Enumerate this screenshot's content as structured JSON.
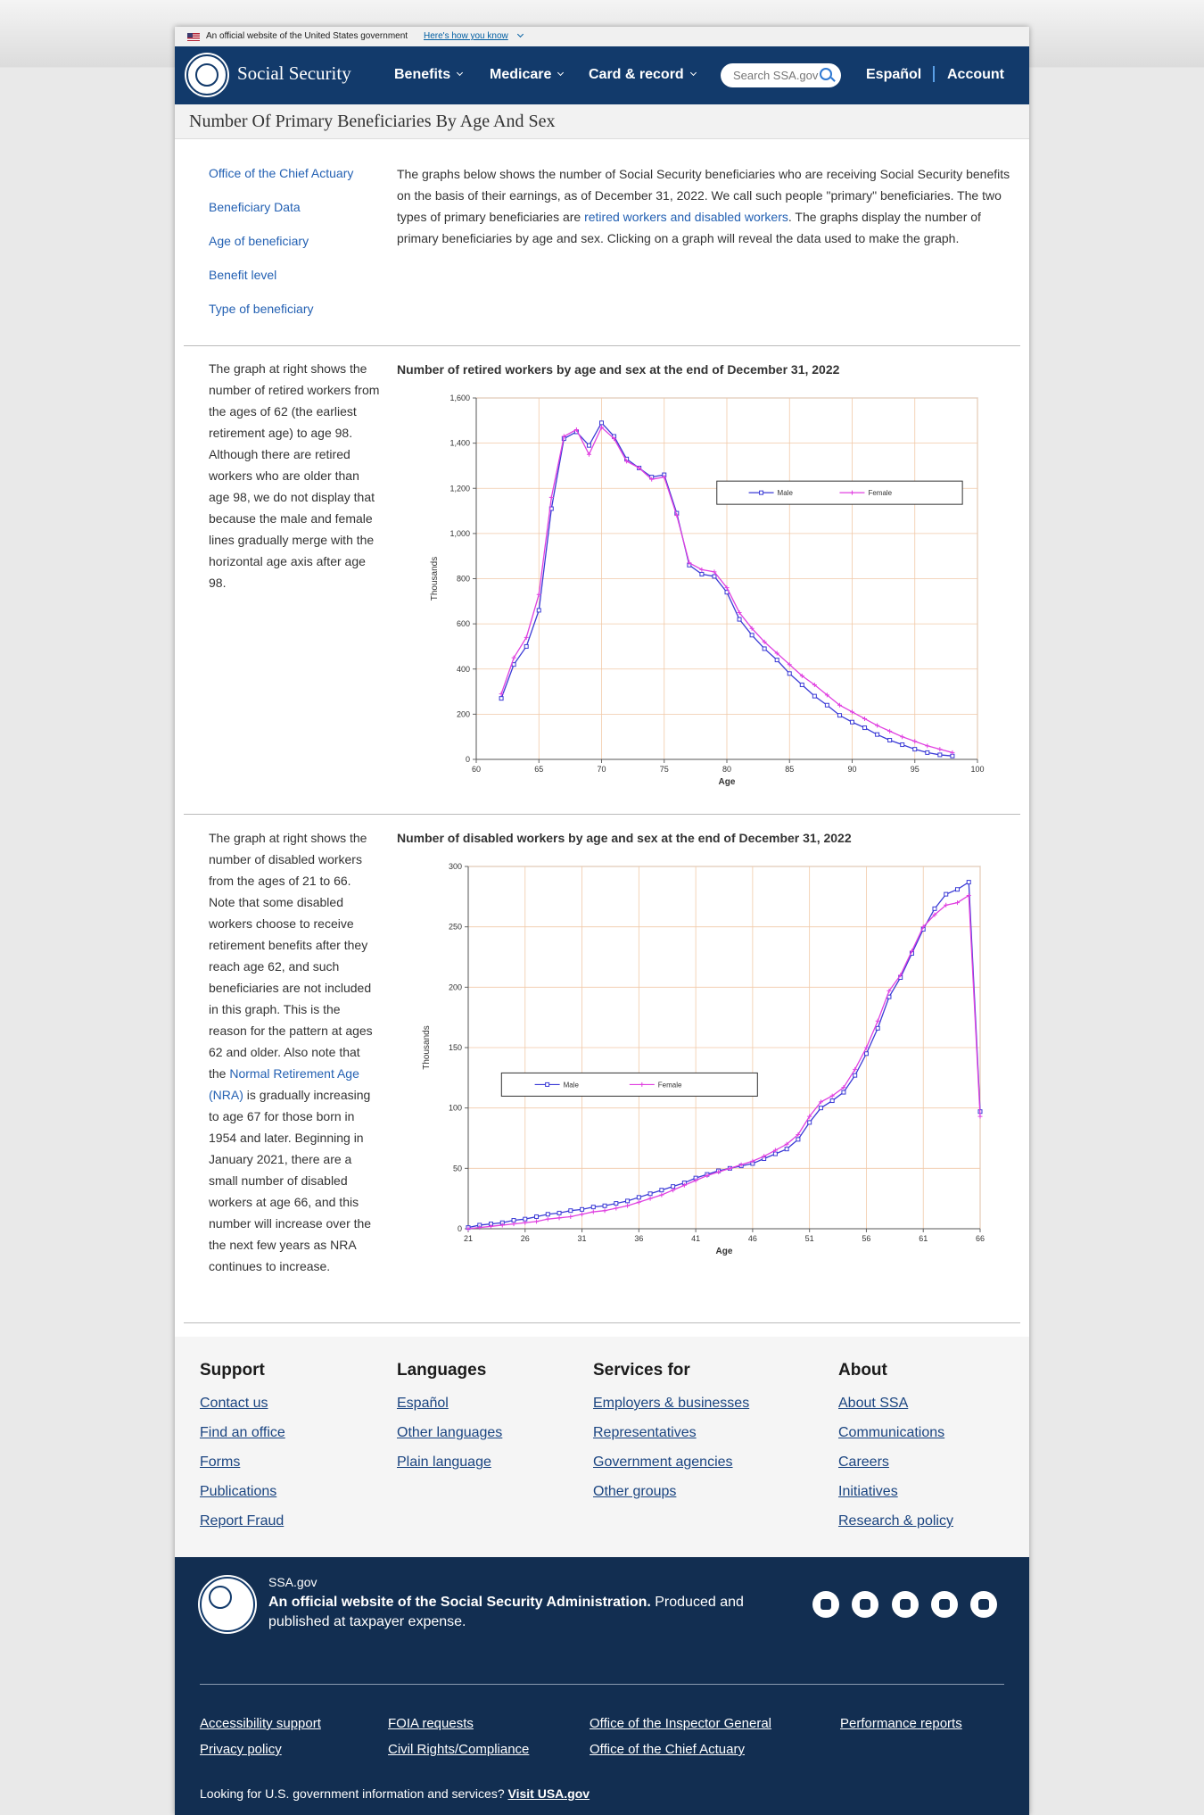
{
  "banner": {
    "text": "An official website of the United States government",
    "link": "Here's how you know"
  },
  "header": {
    "brand": "Social Security",
    "nav": [
      "Benefits",
      "Medicare",
      "Card & record"
    ],
    "search_placeholder": "Search SSA.gov",
    "espanol": "Español",
    "account": "Account"
  },
  "page_title": "Number Of Primary Beneficiaries By Age And Sex",
  "sidebar_links": [
    "Office of the Chief Actuary",
    "Beneficiary Data",
    "Age of beneficiary",
    "Benefit level",
    "Type of beneficiary"
  ],
  "intro": {
    "before": "The graphs below shows the number of Social Security beneficiaries who are receiving Social Security benefits on the basis of their earnings, as of December 31, 2022. We call such people \"primary\" beneficiaries. The two types of primary beneficiaries are ",
    "link": "retired workers and disabled workers",
    "after": ". The graphs display the number of primary beneficiaries by age and sex. Clicking on a graph will reveal the data used to make the graph."
  },
  "sections": [
    {
      "text": "The graph at right shows the number of retired workers from the ages of 62 (the earliest retirement age) to age 98. Although there are retired workers who are older than age 98, we do not display that because the male and female lines gradually merge with the horizontal age axis after age 98."
    },
    {
      "before": "The graph at right shows the number of disabled workers from the ages of 21 to 66.  Note that some disabled workers choose to receive retirement benefits after they reach age 62, and such beneficiaries are not included in this graph. This is the reason for the pattern at ages 62 and older. Also note that the ",
      "link": "Normal Retirement Age (NRA)",
      "after": " is gradually increasing to age 67 for those born in 1954 and later. Beginning in January 2021, there are a small number of disabled workers at age 66, and this number will increase over the the next few years as NRA continues to increase."
    }
  ],
  "chart_data": [
    {
      "type": "line",
      "title": "Number of retired workers by age and sex at the end of December 31, 2022",
      "x_label": "Age",
      "y_label": "Thousands",
      "x": [
        62,
        63,
        64,
        65,
        66,
        67,
        68,
        69,
        70,
        71,
        72,
        73,
        74,
        75,
        76,
        77,
        78,
        79,
        80,
        81,
        82,
        83,
        84,
        85,
        86,
        87,
        88,
        89,
        90,
        91,
        92,
        93,
        94,
        95,
        96,
        97,
        98
      ],
      "series": [
        {
          "name": "Male",
          "color": "#3b3bd6",
          "marker": "square",
          "values": [
            270,
            420,
            500,
            660,
            1110,
            1420,
            1450,
            1390,
            1490,
            1430,
            1330,
            1290,
            1250,
            1260,
            1090,
            860,
            820,
            810,
            740,
            620,
            550,
            490,
            440,
            380,
            330,
            280,
            240,
            195,
            165,
            140,
            110,
            85,
            65,
            45,
            30,
            20,
            15
          ]
        },
        {
          "name": "Female",
          "color": "#e040e0",
          "marker": "plus",
          "values": [
            290,
            450,
            540,
            730,
            1160,
            1430,
            1460,
            1350,
            1470,
            1420,
            1320,
            1290,
            1240,
            1250,
            1080,
            870,
            840,
            830,
            760,
            650,
            580,
            520,
            470,
            420,
            370,
            330,
            285,
            240,
            210,
            180,
            150,
            125,
            100,
            80,
            60,
            45,
            30
          ]
        }
      ],
      "xlim": [
        60,
        100
      ],
      "xticks": [
        60,
        65,
        70,
        75,
        80,
        85,
        90,
        95,
        100
      ],
      "ylim": [
        0,
        1600
      ],
      "yticks": [
        0,
        200,
        400,
        600,
        800,
        {
          "value": 1000,
          "label": "1,000"
        },
        {
          "value": 1200,
          "label": "1,200"
        },
        {
          "value": 1400,
          "label": "1,400"
        },
        {
          "value": 1600,
          "label": "1,600"
        }
      ],
      "grid": true,
      "legend": "upper right"
    },
    {
      "type": "line",
      "title": "Number of disabled workers by age and sex at the end of December 31, 2022",
      "x_label": "Age",
      "y_label": "Thousands",
      "x": [
        21,
        22,
        23,
        24,
        25,
        26,
        27,
        28,
        29,
        30,
        31,
        32,
        33,
        34,
        35,
        36,
        37,
        38,
        39,
        40,
        41,
        42,
        43,
        44,
        45,
        46,
        47,
        48,
        49,
        50,
        51,
        52,
        53,
        54,
        55,
        56,
        57,
        58,
        59,
        60,
        61,
        62,
        63,
        64,
        65,
        66
      ],
      "series": [
        {
          "name": "Male",
          "color": "#3b3bd6",
          "marker": "square",
          "values": [
            1,
            3,
            4,
            5,
            7,
            8,
            10,
            12,
            13,
            15,
            16,
            18,
            19,
            21,
            23,
            26,
            29,
            32,
            35,
            38,
            42,
            45,
            48,
            50,
            52,
            54,
            58,
            62,
            66,
            74,
            88,
            100,
            106,
            113,
            127,
            145,
            166,
            192,
            208,
            228,
            248,
            265,
            277,
            281,
            287,
            97
          ]
        },
        {
          "name": "Female",
          "color": "#e040e0",
          "marker": "plus",
          "values": [
            0,
            1,
            2,
            3,
            4,
            5,
            6,
            8,
            9,
            10,
            12,
            14,
            15,
            17,
            19,
            22,
            25,
            28,
            32,
            36,
            40,
            44,
            47,
            50,
            53,
            56,
            60,
            65,
            70,
            78,
            93,
            105,
            110,
            117,
            132,
            150,
            172,
            197,
            210,
            230,
            250,
            260,
            268,
            270,
            276,
            93
          ]
        }
      ],
      "xlim": [
        21,
        66
      ],
      "xticks": [
        21,
        26,
        31,
        36,
        41,
        46,
        51,
        56,
        61,
        66
      ],
      "ylim": [
        0,
        300
      ],
      "yticks": [
        0,
        50,
        100,
        150,
        200,
        250,
        300
      ],
      "grid": true,
      "legend": "center left"
    }
  ],
  "footer": {
    "columns": [
      {
        "heading": "Support",
        "links": [
          "Contact us",
          "Find an office",
          "Forms",
          "Publications",
          "Report Fraud"
        ]
      },
      {
        "heading": "Languages",
        "links": [
          "Español",
          "Other languages",
          "Plain language"
        ]
      },
      {
        "heading": "Services for",
        "links": [
          "Employers & businesses",
          "Representatives",
          "Government agencies",
          "Other groups"
        ]
      },
      {
        "heading": "About",
        "links": [
          "About SSA",
          "Communications",
          "Careers",
          "Initiatives",
          "Research & policy"
        ]
      }
    ],
    "site": "SSA.gov",
    "official_bold": "An official website of the Social Security Administration.",
    "official_rest": " Produced and published at taxpayer expense.",
    "bottom_links": [
      [
        "Accessibility support",
        "Privacy policy"
      ],
      [
        "FOIA requests",
        "Civil Rights/Compliance"
      ],
      [
        "Office of the Inspector General",
        "Office of the Chief Actuary"
      ],
      [
        "Performance reports"
      ]
    ],
    "looking": "Looking for U.S. government information and services? ",
    "visit": "Visit USA.gov"
  }
}
